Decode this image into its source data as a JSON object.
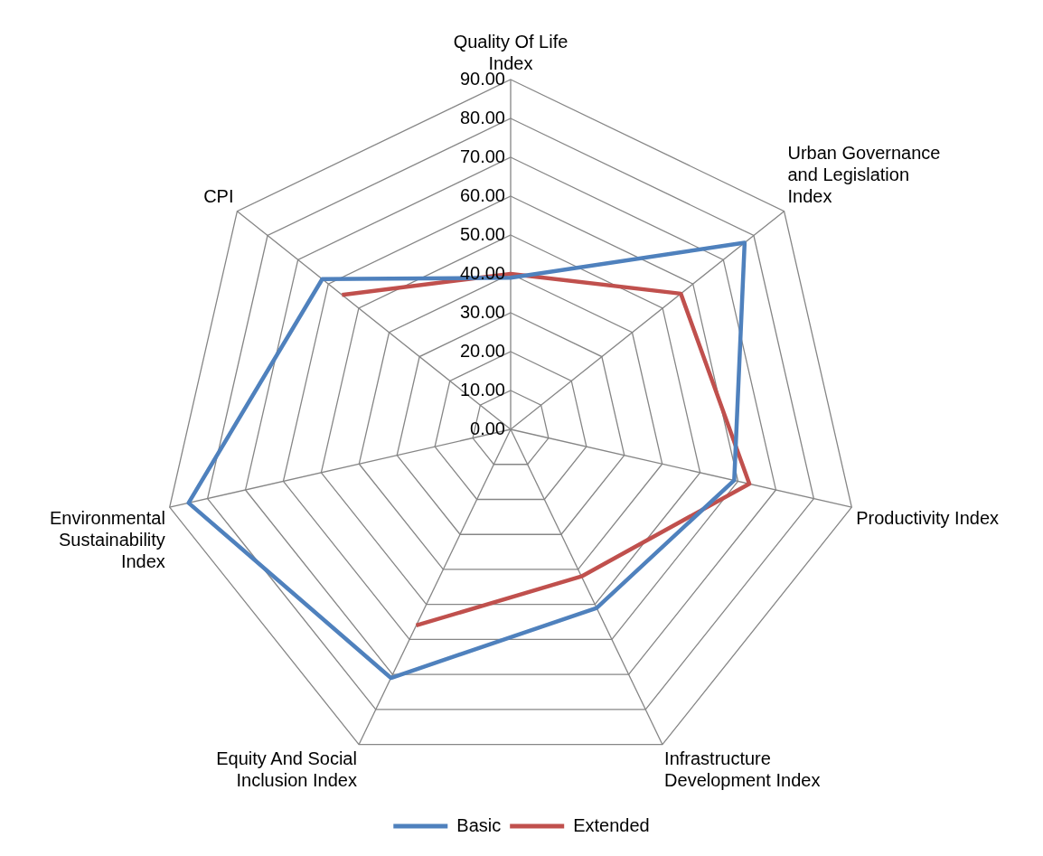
{
  "chart_data": {
    "type": "radar",
    "categories": [
      "Quality Of Life Index",
      "Urban Governance and Legislation Index",
      "Productivity Index",
      "Infrastructure Development Index",
      "Equity And Social Inclusion Index",
      "Environmental Sustainability Index",
      "CPI"
    ],
    "series": [
      {
        "name": "Basic",
        "color": "#4f81bd",
        "values": [
          39,
          77,
          59,
          51,
          71,
          85,
          62
        ]
      },
      {
        "name": "Extended",
        "color": "#c0504d",
        "values": [
          40,
          56,
          63,
          42,
          56,
          null,
          55.5
        ]
      }
    ],
    "ylim": [
      0,
      90
    ],
    "yticks": [
      {
        "value": 0,
        "label": "0.00"
      },
      {
        "value": 10,
        "label": "10.00"
      },
      {
        "value": 20,
        "label": "20.00"
      },
      {
        "value": 30,
        "label": "30.00"
      },
      {
        "value": 40,
        "label": "40.00"
      },
      {
        "value": 50,
        "label": "50.00"
      },
      {
        "value": 60,
        "label": "60.00"
      },
      {
        "value": 70,
        "label": "70.00"
      },
      {
        "value": 80,
        "label": "80.00"
      },
      {
        "value": 90,
        "label": "90.00"
      }
    ],
    "grid": true,
    "legend": "bottom",
    "marker": "none"
  }
}
